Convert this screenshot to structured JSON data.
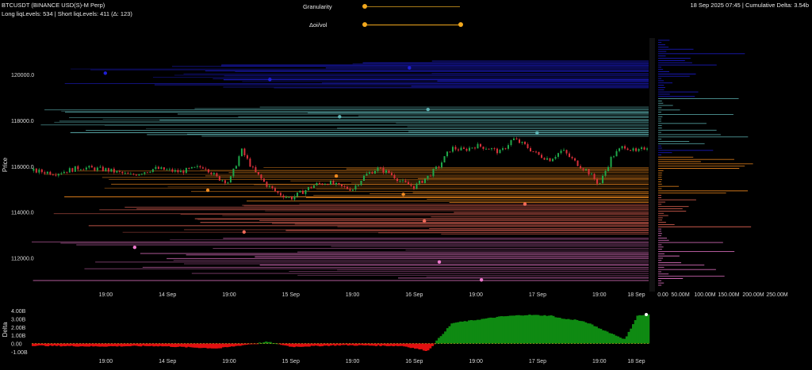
{
  "header": {
    "title": "BTCUSDT (BINANCE USD(S)-M Perp)",
    "subtitle": "Long liqLevels: 534 | Short liqLevels: 411 (Δ: 123)",
    "right": "18 Sep 2025 07:45 | Cumulative Delta: 3.54b"
  },
  "controls": {
    "granularity_label": "Granularity",
    "oi_vol_label": "Δoi/vol",
    "granularity_value": 0,
    "oi_vol_range": [
      0,
      1
    ]
  },
  "colors": {
    "background": "#000000",
    "candle_up": "#1fa84a",
    "candle_down": "#d9303a",
    "delta_positive": "#0f8a12",
    "delta_negative": "#e11010",
    "slider": "#f2a81d"
  },
  "chart_data": [
    {
      "type": "line",
      "title": "",
      "ylabel": "Price",
      "ylim": [
        110800,
        121600
      ],
      "y_ticks": [
        "120000.0",
        "118000.0",
        "116000.0",
        "114000.0",
        "112000.0"
      ],
      "x_ticks": [
        "19:00",
        "14 Sep",
        "19:00",
        "15 Sep",
        "19:00",
        "16 Sep",
        "19:00",
        "17 Sep",
        "19:00",
        "18 Sep"
      ],
      "price_series": {
        "x_hours": [
          0,
          4,
          8,
          12,
          16,
          20,
          24,
          28,
          30,
          32,
          34,
          36,
          38,
          40,
          42,
          44,
          46,
          48,
          50,
          52,
          54,
          56,
          58,
          60,
          62,
          64,
          66,
          68,
          70,
          72,
          74,
          76,
          78,
          80,
          82,
          84,
          86,
          88,
          90,
          92,
          94,
          96,
          98,
          100
        ],
        "y": [
          115800,
          115700,
          115950,
          115850,
          115600,
          115900,
          115750,
          116000,
          115500,
          115300,
          116700,
          115800,
          115200,
          114800,
          114600,
          114900,
          115200,
          115300,
          115100,
          115000,
          115600,
          115900,
          115700,
          115300,
          115100,
          115500,
          116000,
          116800,
          116700,
          116900,
          116800,
          116600,
          117200,
          116900,
          116500,
          116300,
          116700,
          116200,
          115800,
          115200,
          116400,
          116900,
          116600,
          116900
        ]
      },
      "liquidation_bands": [
        {
          "name": "blue",
          "color": "#1f1fd8",
          "from": 119400,
          "to": 120600
        },
        {
          "name": "teal",
          "color": "#5fb5b5",
          "from": 117300,
          "to": 118600
        },
        {
          "name": "orange",
          "color": "#f08a1f",
          "from": 114400,
          "to": 116000
        },
        {
          "name": "coral",
          "color": "#f06a5a",
          "from": 113000,
          "to": 114400
        },
        {
          "name": "pink",
          "color": "#f07ad0",
          "from": 111000,
          "to": 112900
        }
      ]
    },
    {
      "type": "bar",
      "title": "",
      "xlabel": "",
      "ylabel": "",
      "x_ticks": [
        "0.00",
        "50.00M",
        "100.00M",
        "150.00M",
        "200.00M",
        "250.00M"
      ]
    },
    {
      "type": "area",
      "title": "",
      "ylabel": "Delta",
      "y_ticks": [
        "4.00B",
        "3.00B",
        "2.00B",
        "1.00B",
        "0.00",
        "-1.00B"
      ],
      "ylim": [
        -1.2,
        4.6
      ],
      "x_ticks": [
        "19:00",
        "14 Sep",
        "19:00",
        "15 Sep",
        "19:00",
        "16 Sep",
        "19:00",
        "17 Sep",
        "19:00",
        "18 Sep"
      ],
      "x_hours": [
        0,
        10,
        20,
        30,
        38,
        42,
        50,
        60,
        64,
        68,
        72,
        76,
        80,
        84,
        86,
        88,
        90,
        92,
        96,
        98,
        100
      ],
      "values": [
        -0.25,
        -0.35,
        -0.3,
        -0.6,
        0.2,
        -0.4,
        -0.2,
        -0.3,
        -0.9,
        2.5,
        2.9,
        3.3,
        3.5,
        3.4,
        3.0,
        2.9,
        2.5,
        1.8,
        0.5,
        3.4,
        3.54
      ]
    }
  ]
}
